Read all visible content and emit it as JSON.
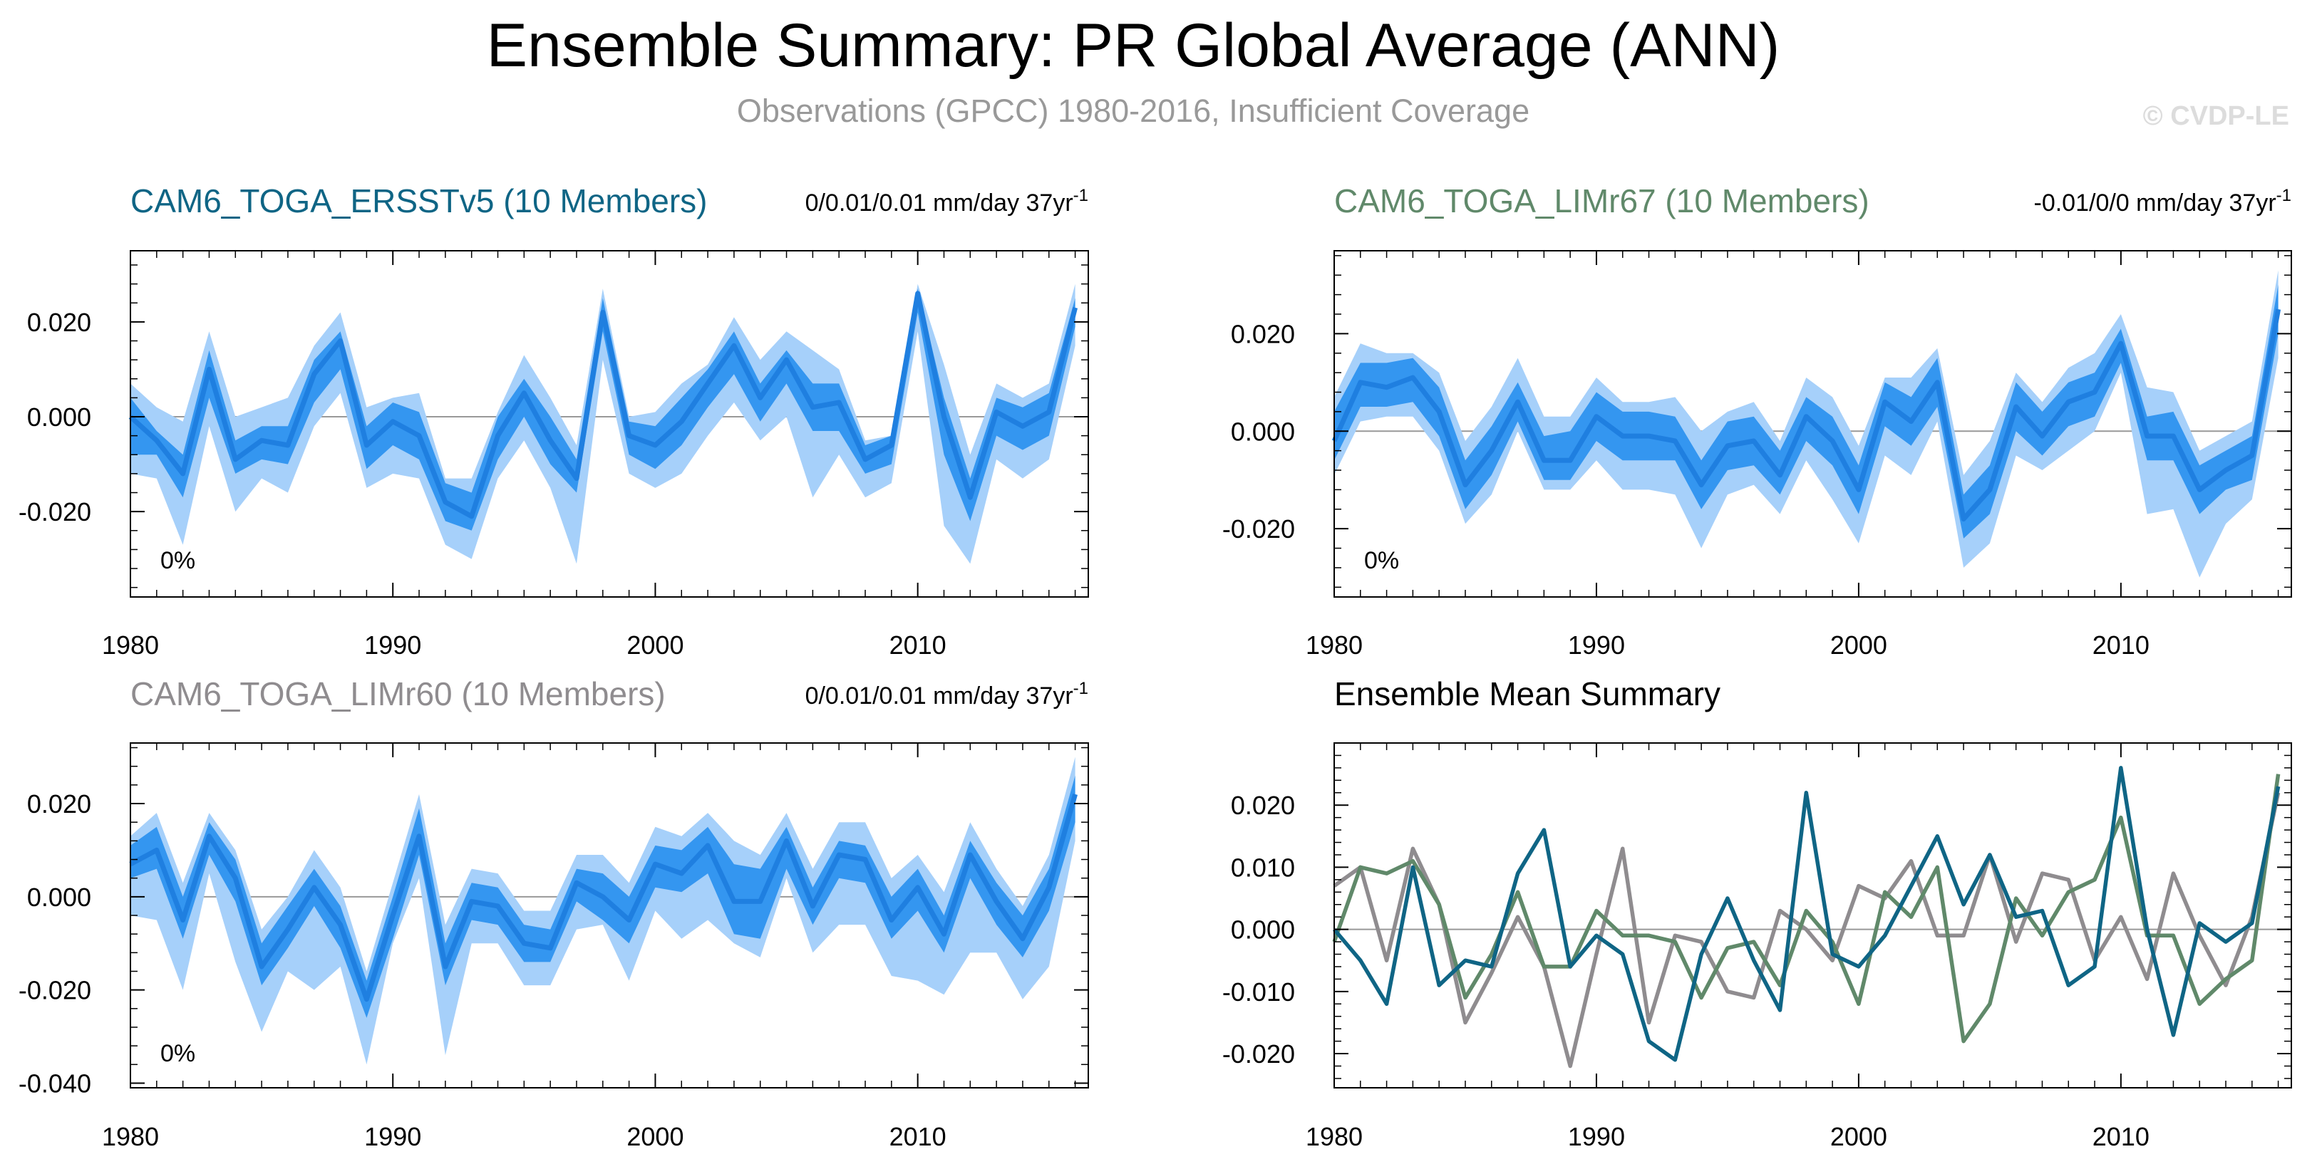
{
  "header": {
    "title": "Ensemble Summary: PR Global Average (ANN)",
    "subtitle": "Observations (GPCC) 1980-2016, Insufficient Coverage",
    "watermark": "© CVDP-LE"
  },
  "colors": {
    "band_outer": "#a6d0fa",
    "band_inner": "#3496f0",
    "mean_line": "#1f7fe0",
    "ersst": "#0f6585",
    "limr67": "#60896a",
    "limr60": "#8f8c8f",
    "axis": "#000000",
    "zero_line": "#999999"
  },
  "chart_data": [
    {
      "type": "area",
      "title": "CAM6_TOGA_ERSSTv5 (10 Members)",
      "title_color": "#0f6585",
      "trend_label": "0/0.01/0.01 mm/day 37yr",
      "trend_superscript": "-1",
      "pct_label": "0%",
      "ylim": [
        -0.038,
        0.035
      ],
      "yticks": [
        -0.02,
        0.0,
        0.02
      ],
      "yticklabels": [
        "-0.020",
        "0.000",
        "0.020"
      ],
      "xlim": [
        1980,
        2016.5
      ],
      "xticks": [
        1980,
        1990,
        2000,
        2010
      ],
      "x_start": 1980,
      "mean": [
        0.0,
        -0.005,
        -0.012,
        0.01,
        -0.009,
        -0.005,
        -0.006,
        0.009,
        0.016,
        -0.006,
        -0.001,
        -0.004,
        -0.018,
        -0.021,
        -0.004,
        0.005,
        -0.005,
        -0.013,
        0.022,
        -0.004,
        -0.006,
        -0.001,
        0.007,
        0.015,
        0.004,
        0.012,
        0.002,
        0.003,
        -0.009,
        -0.006,
        0.026,
        0.0,
        -0.017,
        0.001,
        -0.002,
        0.001,
        0.023
      ],
      "inner_lo": [
        -0.008,
        -0.008,
        -0.017,
        0.004,
        -0.012,
        -0.009,
        -0.01,
        0.003,
        0.01,
        -0.011,
        -0.006,
        -0.009,
        -0.022,
        -0.024,
        -0.009,
        0.0,
        -0.01,
        -0.016,
        0.018,
        -0.008,
        -0.011,
        -0.006,
        0.002,
        0.009,
        -0.001,
        0.007,
        -0.003,
        -0.003,
        -0.012,
        -0.01,
        0.022,
        -0.008,
        -0.022,
        -0.004,
        -0.007,
        -0.004,
        0.019
      ],
      "inner_hi": [
        0.004,
        -0.003,
        -0.008,
        0.014,
        -0.005,
        -0.002,
        -0.002,
        0.012,
        0.018,
        -0.002,
        0.003,
        0.001,
        -0.014,
        -0.016,
        0.0,
        0.008,
        0.0,
        -0.009,
        0.025,
        -0.001,
        -0.002,
        0.004,
        0.01,
        0.018,
        0.007,
        0.014,
        0.007,
        0.007,
        -0.006,
        -0.004,
        0.027,
        0.004,
        -0.013,
        0.004,
        0.002,
        0.005,
        0.025
      ],
      "outer_lo": [
        -0.012,
        -0.013,
        -0.027,
        -0.002,
        -0.02,
        -0.013,
        -0.016,
        -0.002,
        0.005,
        -0.015,
        -0.012,
        -0.013,
        -0.027,
        -0.03,
        -0.013,
        -0.005,
        -0.015,
        -0.031,
        0.012,
        -0.012,
        -0.015,
        -0.012,
        -0.004,
        0.003,
        -0.005,
        0.0,
        -0.017,
        -0.008,
        -0.017,
        -0.014,
        0.018,
        -0.023,
        -0.031,
        -0.009,
        -0.013,
        -0.009,
        0.015
      ],
      "outer_hi": [
        0.007,
        0.002,
        -0.001,
        0.018,
        0.0,
        0.002,
        0.004,
        0.015,
        0.022,
        0.002,
        0.004,
        0.005,
        -0.013,
        -0.013,
        0.001,
        0.013,
        0.004,
        -0.006,
        0.027,
        0.0,
        0.001,
        0.007,
        0.011,
        0.021,
        0.012,
        0.018,
        0.014,
        0.01,
        -0.005,
        -0.004,
        0.028,
        0.011,
        -0.008,
        0.007,
        0.004,
        0.007,
        0.028
      ]
    },
    {
      "type": "area",
      "title": "CAM6_TOGA_LIMr67 (10 Members)",
      "title_color": "#60896a",
      "trend_label": "-0.01/0/0 mm/day 37yr",
      "trend_superscript": "-1",
      "pct_label": "0%",
      "ylim": [
        -0.034,
        0.037
      ],
      "yticks": [
        -0.02,
        0.0,
        0.02
      ],
      "yticklabels": [
        "-0.020",
        "0.000",
        "0.020"
      ],
      "xlim": [
        1980,
        2016.5
      ],
      "xticks": [
        1980,
        1990,
        2000,
        2010
      ],
      "x_start": 1980,
      "mean": [
        -0.002,
        0.01,
        0.009,
        0.011,
        0.004,
        -0.011,
        -0.004,
        0.006,
        -0.006,
        -0.006,
        0.003,
        -0.001,
        -0.001,
        -0.002,
        -0.011,
        -0.003,
        -0.002,
        -0.009,
        0.003,
        -0.002,
        -0.012,
        0.006,
        0.002,
        0.01,
        -0.018,
        -0.012,
        0.005,
        -0.001,
        0.006,
        0.008,
        0.018,
        -0.001,
        -0.001,
        -0.012,
        -0.008,
        -0.005,
        0.025
      ],
      "inner_lo": [
        -0.006,
        0.005,
        0.005,
        0.006,
        -0.001,
        -0.016,
        -0.009,
        0.002,
        -0.01,
        -0.01,
        -0.002,
        -0.006,
        -0.006,
        -0.006,
        -0.016,
        -0.008,
        -0.007,
        -0.013,
        -0.002,
        -0.007,
        -0.017,
        0.001,
        -0.003,
        0.005,
        -0.022,
        -0.017,
        0.0,
        -0.005,
        0.001,
        0.003,
        0.014,
        -0.006,
        -0.006,
        -0.017,
        -0.012,
        -0.01,
        0.02
      ],
      "inner_hi": [
        0.004,
        0.014,
        0.014,
        0.015,
        0.009,
        -0.006,
        0.001,
        0.01,
        -0.001,
        0.0,
        0.008,
        0.004,
        0.004,
        0.003,
        -0.006,
        0.002,
        0.003,
        -0.004,
        0.007,
        0.003,
        -0.007,
        0.01,
        0.007,
        0.015,
        -0.013,
        -0.007,
        0.01,
        0.004,
        0.01,
        0.012,
        0.021,
        0.003,
        0.004,
        -0.007,
        -0.004,
        -0.001,
        0.03
      ],
      "outer_lo": [
        -0.009,
        0.002,
        0.003,
        0.003,
        -0.004,
        -0.019,
        -0.013,
        0.0,
        -0.012,
        -0.012,
        -0.006,
        -0.012,
        -0.012,
        -0.013,
        -0.024,
        -0.013,
        -0.011,
        -0.017,
        -0.006,
        -0.014,
        -0.023,
        -0.005,
        -0.009,
        0.002,
        -0.028,
        -0.023,
        -0.005,
        -0.008,
        -0.004,
        0.0,
        0.012,
        -0.017,
        -0.016,
        -0.03,
        -0.019,
        -0.014,
        0.015
      ],
      "outer_hi": [
        0.007,
        0.018,
        0.016,
        0.016,
        0.012,
        -0.002,
        0.005,
        0.015,
        0.003,
        0.003,
        0.011,
        0.006,
        0.006,
        0.007,
        0.0,
        0.004,
        0.006,
        -0.002,
        0.011,
        0.007,
        -0.003,
        0.011,
        0.011,
        0.017,
        -0.009,
        -0.002,
        0.012,
        0.006,
        0.013,
        0.016,
        0.024,
        0.009,
        0.008,
        -0.004,
        -0.001,
        0.002,
        0.033
      ]
    },
    {
      "type": "area",
      "title": "CAM6_TOGA_LIMr60 (10 Members)",
      "title_color": "#8f8c8f",
      "trend_label": "0/0.01/0.01 mm/day 37yr",
      "trend_superscript": "-1",
      "pct_label": "0%",
      "ylim": [
        -0.041,
        0.033
      ],
      "yticks": [
        -0.04,
        -0.02,
        0.0,
        0.02
      ],
      "yticklabels": [
        "-0.040",
        "-0.020",
        "0.000",
        "0.020"
      ],
      "xlim": [
        1980,
        2016.5
      ],
      "xticks": [
        1980,
        1990,
        2000,
        2010
      ],
      "x_start": 1980,
      "mean": [
        0.007,
        0.01,
        -0.005,
        0.013,
        0.004,
        -0.015,
        -0.007,
        0.002,
        -0.006,
        -0.022,
        -0.004,
        0.013,
        -0.015,
        -0.001,
        -0.002,
        -0.01,
        -0.011,
        0.003,
        0.0,
        -0.005,
        0.007,
        0.005,
        0.011,
        -0.001,
        -0.001,
        0.012,
        -0.002,
        0.009,
        0.008,
        -0.005,
        0.002,
        -0.008,
        0.009,
        -0.001,
        -0.009,
        0.002,
        0.022
      ],
      "inner_lo": [
        0.004,
        0.006,
        -0.009,
        0.009,
        -0.001,
        -0.019,
        -0.011,
        -0.002,
        -0.011,
        -0.026,
        -0.009,
        0.009,
        -0.019,
        -0.005,
        -0.006,
        -0.014,
        -0.014,
        -0.001,
        -0.005,
        -0.01,
        0.002,
        0.001,
        0.005,
        -0.008,
        -0.009,
        0.006,
        -0.006,
        0.004,
        0.003,
        -0.009,
        -0.003,
        -0.012,
        0.004,
        -0.006,
        -0.013,
        -0.003,
        0.016
      ],
      "inner_hi": [
        0.011,
        0.015,
        0.0,
        0.016,
        0.008,
        -0.01,
        -0.002,
        0.006,
        -0.002,
        -0.018,
        0.0,
        0.019,
        -0.01,
        0.003,
        0.002,
        -0.006,
        -0.007,
        0.006,
        0.005,
        0.0,
        0.011,
        0.01,
        0.015,
        0.007,
        0.006,
        0.015,
        0.002,
        0.012,
        0.011,
        0.0,
        0.006,
        -0.004,
        0.012,
        0.003,
        -0.004,
        0.006,
        0.026
      ],
      "outer_lo": [
        -0.004,
        -0.005,
        -0.02,
        0.005,
        -0.014,
        -0.029,
        -0.016,
        -0.02,
        -0.015,
        -0.036,
        -0.01,
        0.004,
        -0.034,
        -0.01,
        -0.01,
        -0.019,
        -0.019,
        -0.007,
        -0.006,
        -0.018,
        -0.003,
        -0.009,
        -0.005,
        -0.01,
        -0.013,
        0.004,
        -0.012,
        -0.006,
        -0.006,
        -0.017,
        -0.018,
        -0.021,
        -0.012,
        -0.012,
        -0.022,
        -0.015,
        0.012
      ],
      "outer_hi": [
        0.013,
        0.018,
        0.003,
        0.018,
        0.01,
        -0.007,
        0.0,
        0.01,
        0.002,
        -0.016,
        0.003,
        0.022,
        -0.006,
        0.006,
        0.005,
        -0.003,
        -0.003,
        0.009,
        0.009,
        0.003,
        0.015,
        0.013,
        0.018,
        0.012,
        0.009,
        0.018,
        0.006,
        0.016,
        0.016,
        0.004,
        0.009,
        0.001,
        0.016,
        0.006,
        -0.002,
        0.009,
        0.03
      ]
    },
    {
      "type": "line",
      "title": "Ensemble Mean Summary",
      "title_color": "#000000",
      "ylim": [
        -0.0255,
        0.03
      ],
      "yticks": [
        -0.02,
        -0.01,
        0.0,
        0.01,
        0.02
      ],
      "yticklabels": [
        "-0.020",
        "-0.010",
        "0.000",
        "0.010",
        "0.020"
      ],
      "xlim": [
        1980,
        2016.5
      ],
      "xticks": [
        1980,
        1990,
        2000,
        2010
      ],
      "x_start": 1980,
      "series": [
        {
          "name": "CAM6_TOGA_LIMr60",
          "color": "#8f8c8f",
          "values": [
            0.007,
            0.01,
            -0.005,
            0.013,
            0.004,
            -0.015,
            -0.007,
            0.002,
            -0.006,
            -0.022,
            -0.004,
            0.013,
            -0.015,
            -0.001,
            -0.002,
            -0.01,
            -0.011,
            0.003,
            0.0,
            -0.005,
            0.007,
            0.005,
            0.011,
            -0.001,
            -0.001,
            0.012,
            -0.002,
            0.009,
            0.008,
            -0.005,
            0.002,
            -0.008,
            0.009,
            -0.001,
            -0.009,
            0.002,
            0.022
          ]
        },
        {
          "name": "CAM6_TOGA_LIMr67",
          "color": "#60896a",
          "values": [
            -0.002,
            0.01,
            0.009,
            0.011,
            0.004,
            -0.011,
            -0.004,
            0.006,
            -0.006,
            -0.006,
            0.003,
            -0.001,
            -0.001,
            -0.002,
            -0.011,
            -0.003,
            -0.002,
            -0.009,
            0.003,
            -0.002,
            -0.012,
            0.006,
            0.002,
            0.01,
            -0.018,
            -0.012,
            0.005,
            -0.001,
            0.006,
            0.008,
            0.018,
            -0.001,
            -0.001,
            -0.012,
            -0.008,
            -0.005,
            0.025
          ]
        },
        {
          "name": "CAM6_TOGA_ERSSTv5",
          "color": "#0f6585",
          "values": [
            0.0,
            -0.005,
            -0.012,
            0.01,
            -0.009,
            -0.005,
            -0.006,
            0.009,
            0.016,
            -0.006,
            -0.001,
            -0.004,
            -0.018,
            -0.021,
            -0.004,
            0.005,
            -0.005,
            -0.013,
            0.022,
            -0.004,
            -0.006,
            -0.001,
            0.007,
            0.015,
            0.004,
            0.012,
            0.002,
            0.003,
            -0.009,
            -0.006,
            0.026,
            0.0,
            -0.017,
            0.001,
            -0.002,
            0.001,
            0.023
          ]
        }
      ]
    }
  ]
}
